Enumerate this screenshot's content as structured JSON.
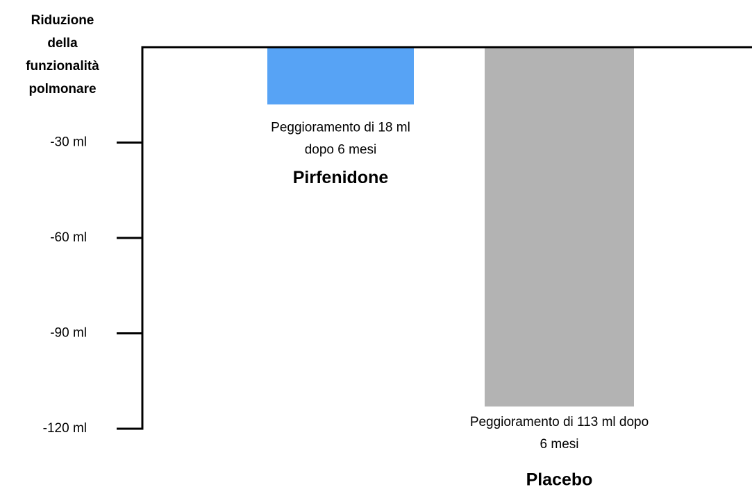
{
  "chart_data": {
    "type": "bar",
    "y_label": [
      "Riduzione",
      "della",
      "funzionalità",
      "polmonare"
    ],
    "categories": [
      "Pirfenidone",
      "Placebo"
    ],
    "values": [
      -18,
      -113
    ],
    "colors": [
      "#57a3f5",
      "#b3b3b3"
    ],
    "annotations": [
      [
        "Peggioramento di 18 ml",
        "dopo 6 mesi"
      ],
      [
        "Peggioramento di 113 ml dopo",
        "6 mesi"
      ]
    ],
    "ylim": [
      -120,
      0
    ],
    "yticks": [
      {
        "value": -30,
        "label": "-30 ml"
      },
      {
        "value": -60,
        "label": "-60 ml"
      },
      {
        "value": -90,
        "label": "-90 ml"
      },
      {
        "value": -120,
        "label": "-120 ml"
      }
    ]
  }
}
